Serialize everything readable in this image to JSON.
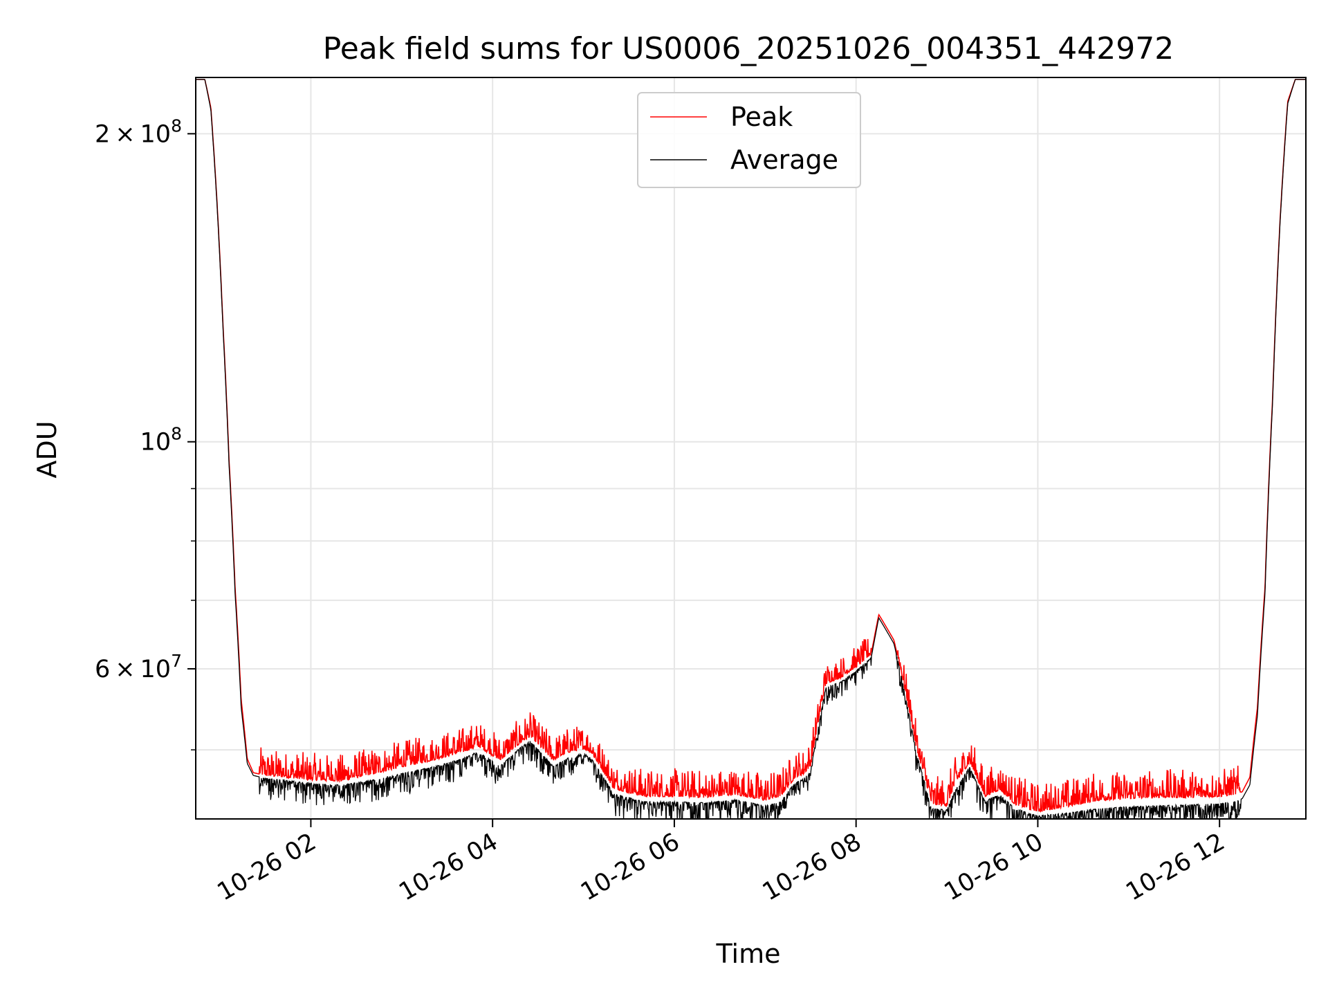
{
  "chart_data": {
    "type": "line",
    "title": "Peak field sums for US0006_20251026_004351_442972",
    "xlabel": "Time",
    "ylabel": "ADU",
    "y_scale": "log",
    "grid": true,
    "legend_placement": "upper-center",
    "xlim": [
      "2025-10-26T00:44",
      "2025-10-26T12:57"
    ],
    "ylim": [
      42800000,
      227000000
    ],
    "x_ticks": [
      {
        "value": "2025-10-26T02:00",
        "label": "10-26 02"
      },
      {
        "value": "2025-10-26T04:00",
        "label": "10-26 04"
      },
      {
        "value": "2025-10-26T06:00",
        "label": "10-26 06"
      },
      {
        "value": "2025-10-26T08:00",
        "label": "10-26 08"
      },
      {
        "value": "2025-10-26T10:00",
        "label": "10-26 10"
      },
      {
        "value": "2025-10-26T12:00",
        "label": "10-26 12"
      }
    ],
    "y_major_ticks": [
      {
        "value": 60000000,
        "mantissa": "6",
        "exponent": "7"
      },
      {
        "value": 100000000,
        "mantissa": "",
        "exponent": "8"
      },
      {
        "value": 200000000,
        "mantissa": "2",
        "exponent": "8"
      }
    ],
    "y_minor_ticks": [
      50000000,
      70000000,
      80000000,
      90000000
    ],
    "series": [
      {
        "name": "Peak",
        "color": "#ff0000",
        "noise_amplitude": 1200000,
        "x": [
          "2025-10-26T00:44",
          "2025-10-26T00:50",
          "2025-10-26T00:54",
          "2025-10-26T00:58",
          "2025-10-26T01:02",
          "2025-10-26T01:06",
          "2025-10-26T01:10",
          "2025-10-26T01:14",
          "2025-10-26T01:18",
          "2025-10-26T01:22",
          "2025-10-26T01:30",
          "2025-10-26T02:00",
          "2025-10-26T02:20",
          "2025-10-26T02:40",
          "2025-10-26T03:00",
          "2025-10-26T03:20",
          "2025-10-26T03:40",
          "2025-10-26T03:50",
          "2025-10-26T04:05",
          "2025-10-26T04:20",
          "2025-10-26T04:25",
          "2025-10-26T04:40",
          "2025-10-26T04:50",
          "2025-10-26T05:00",
          "2025-10-26T05:05",
          "2025-10-26T05:20",
          "2025-10-26T05:40",
          "2025-10-26T06:00",
          "2025-10-26T06:20",
          "2025-10-26T06:40",
          "2025-10-26T07:00",
          "2025-10-26T07:10",
          "2025-10-26T07:20",
          "2025-10-26T07:25",
          "2025-10-26T07:30",
          "2025-10-26T07:40",
          "2025-10-26T07:50",
          "2025-10-26T08:00",
          "2025-10-26T08:10",
          "2025-10-26T08:15",
          "2025-10-26T08:25",
          "2025-10-26T08:40",
          "2025-10-26T08:50",
          "2025-10-26T09:00",
          "2025-10-26T09:05",
          "2025-10-26T09:15",
          "2025-10-26T09:25",
          "2025-10-26T09:35",
          "2025-10-26T09:45",
          "2025-10-26T10:00",
          "2025-10-26T10:20",
          "2025-10-26T10:40",
          "2025-10-26T11:00",
          "2025-10-26T11:20",
          "2025-10-26T11:40",
          "2025-10-26T12:00",
          "2025-10-26T12:10",
          "2025-10-26T12:15",
          "2025-10-26T12:20",
          "2025-10-26T12:25",
          "2025-10-26T12:30",
          "2025-10-26T12:35",
          "2025-10-26T12:40",
          "2025-10-26T12:45",
          "2025-10-26T12:50",
          "2025-10-26T12:57"
        ],
        "y": [
          226000000,
          226000000,
          212000000,
          172000000,
          130000000,
          96000000,
          72000000,
          56000000,
          49000000,
          47500000,
          47200000,
          46700000,
          46600000,
          47300000,
          48100000,
          48800000,
          49700000,
          50400000,
          48800000,
          51000000,
          51500000,
          48800000,
          49700000,
          50100000,
          49700000,
          45800000,
          45000000,
          45000000,
          44900000,
          45200000,
          44600000,
          45000000,
          47000000,
          47300000,
          48200000,
          58000000,
          58800000,
          60200000,
          62000000,
          67800000,
          64000000,
          50000000,
          44200000,
          44100000,
          46100000,
          48600000,
          45000000,
          45700000,
          44200000,
          43500000,
          44000000,
          44600000,
          44800000,
          44900000,
          44900000,
          45000000,
          45200000,
          45500000,
          47000000,
          55000000,
          72000000,
          110000000,
          165000000,
          215000000,
          226000000,
          226000000
        ]
      },
      {
        "name": "Average",
        "color": "#000000",
        "noise_amplitude": 900000,
        "x": [
          "2025-10-26T00:44",
          "2025-10-26T00:50",
          "2025-10-26T00:54",
          "2025-10-26T00:58",
          "2025-10-26T01:02",
          "2025-10-26T01:06",
          "2025-10-26T01:10",
          "2025-10-26T01:14",
          "2025-10-26T01:18",
          "2025-10-26T01:22",
          "2025-10-26T01:30",
          "2025-10-26T02:00",
          "2025-10-26T02:20",
          "2025-10-26T02:40",
          "2025-10-26T03:00",
          "2025-10-26T03:20",
          "2025-10-26T03:40",
          "2025-10-26T03:50",
          "2025-10-26T04:05",
          "2025-10-26T04:20",
          "2025-10-26T04:25",
          "2025-10-26T04:40",
          "2025-10-26T04:50",
          "2025-10-26T05:00",
          "2025-10-26T05:05",
          "2025-10-26T05:20",
          "2025-10-26T05:40",
          "2025-10-26T06:00",
          "2025-10-26T06:20",
          "2025-10-26T06:40",
          "2025-10-26T07:00",
          "2025-10-26T07:10",
          "2025-10-26T07:20",
          "2025-10-26T07:25",
          "2025-10-26T07:30",
          "2025-10-26T07:40",
          "2025-10-26T07:50",
          "2025-10-26T08:00",
          "2025-10-26T08:10",
          "2025-10-26T08:15",
          "2025-10-26T08:25",
          "2025-10-26T08:40",
          "2025-10-26T08:50",
          "2025-10-26T09:00",
          "2025-10-26T09:05",
          "2025-10-26T09:15",
          "2025-10-26T09:25",
          "2025-10-26T09:35",
          "2025-10-26T09:45",
          "2025-10-26T10:00",
          "2025-10-26T10:20",
          "2025-10-26T10:40",
          "2025-10-26T11:00",
          "2025-10-26T11:20",
          "2025-10-26T11:40",
          "2025-10-26T12:00",
          "2025-10-26T12:10",
          "2025-10-26T12:15",
          "2025-10-26T12:20",
          "2025-10-26T12:25",
          "2025-10-26T12:30",
          "2025-10-26T12:35",
          "2025-10-26T12:40",
          "2025-10-26T12:45",
          "2025-10-26T12:50",
          "2025-10-26T12:57"
        ],
        "y": [
          226000000,
          226000000,
          211000000,
          171000000,
          129000000,
          95000000,
          71000000,
          55000000,
          48500000,
          47200000,
          46900000,
          46400000,
          46200000,
          46700000,
          47400000,
          48100000,
          49000000,
          49800000,
          48200000,
          50500000,
          51000000,
          48200000,
          49100000,
          49600000,
          49100000,
          45300000,
          44500000,
          44500000,
          44400000,
          44700000,
          44100000,
          44500000,
          46500000,
          46800000,
          47700000,
          57500000,
          58300000,
          59700000,
          61500000,
          67300000,
          63500000,
          49500000,
          43800000,
          43700000,
          45600000,
          48100000,
          44600000,
          45200000,
          43800000,
          43100000,
          43400000,
          43800000,
          44000000,
          44100000,
          44200000,
          44300000,
          44500000,
          44800000,
          46200000,
          54000000,
          71000000,
          109000000,
          164000000,
          214000000,
          226000000,
          226000000
        ]
      }
    ]
  }
}
